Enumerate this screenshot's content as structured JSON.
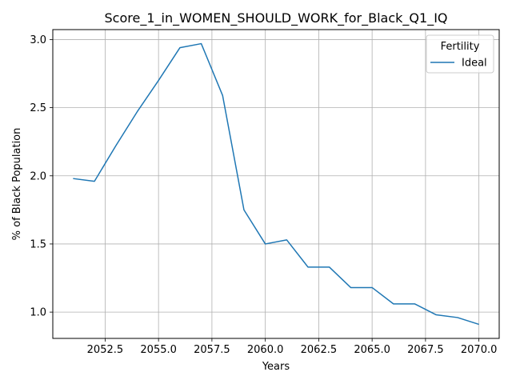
{
  "chart_data": {
    "type": "line",
    "title": "Score_1_in_WOMEN_SHOULD_WORK_for_Black_Q1_IQ",
    "xlabel": "Years",
    "ylabel": "% of Black Population",
    "xlim": [
      2050.05,
      2070.95
    ],
    "ylim": [
      0.807,
      3.073
    ],
    "x_ticks": [
      2052.5,
      2055.0,
      2057.5,
      2060.0,
      2062.5,
      2065.0,
      2067.5,
      2070.0
    ],
    "x_tick_labels": [
      "2052.5",
      "2055.0",
      "2057.5",
      "2060.0",
      "2062.5",
      "2065.0",
      "2067.5",
      "2070.0"
    ],
    "y_ticks": [
      1.0,
      1.5,
      2.0,
      2.5,
      3.0
    ],
    "y_tick_labels": [
      "1.0",
      "1.5",
      "2.0",
      "2.5",
      "3.0"
    ],
    "grid": true,
    "legend": {
      "title": "Fertility",
      "placement": "top-right"
    },
    "series": [
      {
        "name": "Ideal",
        "color": "#1f77b4",
        "x": [
          2051,
          2052,
          2053,
          2054,
          2055,
          2056,
          2057,
          2058,
          2059,
          2060,
          2061,
          2062,
          2063,
          2064,
          2065,
          2066,
          2067,
          2068,
          2069,
          2070
        ],
        "y": [
          1.98,
          1.96,
          2.22,
          2.47,
          2.7,
          2.94,
          2.97,
          2.59,
          1.75,
          1.5,
          1.53,
          1.33,
          1.33,
          1.18,
          1.18,
          1.06,
          1.06,
          0.98,
          0.96,
          0.91
        ]
      }
    ]
  }
}
